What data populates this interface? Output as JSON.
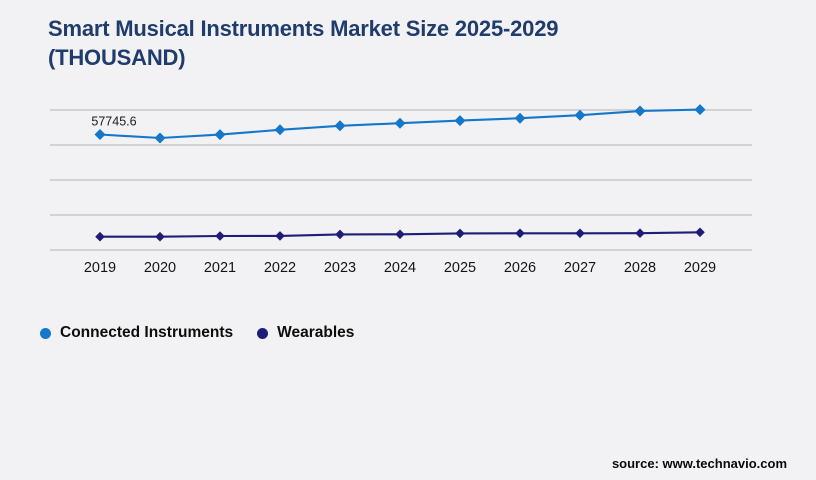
{
  "page": {
    "title": "Smart Musical Instruments Market Size 2025-2029 (THOUSAND)",
    "source": "source: www.technavio.com"
  },
  "colors": {
    "background": "#f2f2f4",
    "title": "#1f3c6d",
    "gridline": "#c8c8cc",
    "connected_instruments": "#1577c9",
    "wearables": "#1e1e78",
    "axis_text": "#161616",
    "data_label_text": "#1a1a1a"
  },
  "legend": {
    "items": [
      {
        "label": "Connected Instruments",
        "color": "#1577c9"
      },
      {
        "label": "Wearables",
        "color": "#1e1e78"
      }
    ]
  },
  "chart_data": {
    "type": "line",
    "title": "Smart Musical Instruments Market Size 2025-2029 (THOUSAND)",
    "xlabel": "",
    "ylabel": "",
    "categories": [
      "2019",
      "2020",
      "2021",
      "2022",
      "2023",
      "2024",
      "2025",
      "2026",
      "2027",
      "2028",
      "2029"
    ],
    "series": [
      {
        "name": "Connected Instruments",
        "color": "#1577c9",
        "marker": "diamond",
        "marker_size": 5.5,
        "values": [
          57745.6,
          56000,
          57700,
          60100,
          62100,
          63400,
          64700,
          65900,
          67400,
          69500,
          70200
        ]
      },
      {
        "name": "Wearables",
        "color": "#1e1e78",
        "marker": "diamond",
        "marker_size": 4.8,
        "values": [
          6650,
          6650,
          7000,
          7050,
          7800,
          7850,
          8300,
          8350,
          8350,
          8400,
          8850
        ]
      }
    ],
    "data_labels": [
      {
        "series": 0,
        "index": 0,
        "text": "57745.6"
      }
    ],
    "ylim": [
      0,
      70000
    ],
    "grid": "horizontal",
    "gridline_count": 5,
    "y_axis_labels_visible": false,
    "legend_position": "bottom-left"
  }
}
